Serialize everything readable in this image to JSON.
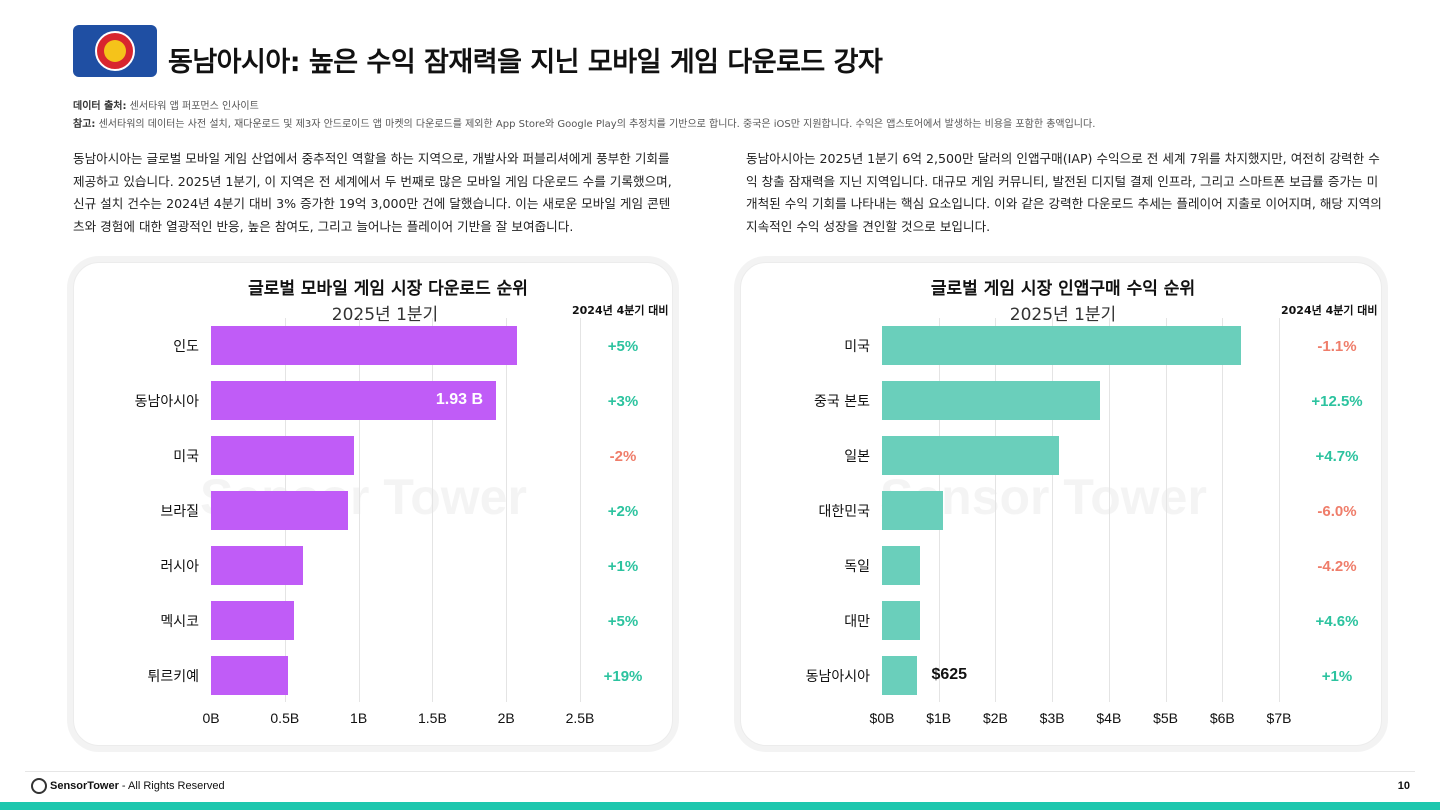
{
  "header": {
    "title": "동남아시아: 높은 수익 잠재력을 지닌 모바일 게임 다운로드 강자",
    "source_label": "데이터 출처:",
    "source_text": "센서타워 앱 퍼포먼스 인사이트",
    "note_label": "참고:",
    "note_text": "센서타워의 데이터는 사전 설치, 재다운로드 및 제3자 안드로이드 앱 마켓의 다운로드를 제외한 App Store와 Google Play의 추정치를 기반으로 합니다. 중국은 iOS만 지원합니다. 수익은 앱스토어에서 발생하는 비용을 포함한 총액입니다."
  },
  "body": {
    "left": "동남아시아는 글로벌 모바일 게임 산업에서 중추적인 역할을 하는 지역으로, 개발사와 퍼블리셔에게 풍부한 기회를 제공하고 있습니다. 2025년 1분기, 이 지역은 전 세계에서 두 번째로 많은 모바일 게임 다운로드 수를 기록했으며, 신규 설치 건수는 2024년 4분기 대비 3% 증가한 19억 3,000만 건에 달했습니다. 이는 새로운 모바일 게임 콘텐츠와 경험에 대한 열광적인 반응, 높은 참여도, 그리고 늘어나는 플레이어 기반을 잘 보여줍니다.",
    "right": "동남아시아는 2025년 1분기 6억 2,500만 달러의 인앱구매(IAP) 수익으로 전 세계 7위를 차지했지만, 여전히 강력한 수익 창출 잠재력을 지닌 지역입니다. 대규모 게임 커뮤니티, 발전된 디지털 결제 인프라, 그리고 스마트폰 보급률 증가는 미개척된 수익 기회를 나타내는 핵심 요소입니다. 이와 같은 강력한 다운로드 추세는 플레이어 지출로 이어지며, 해당 지역의 지속적인 수익 성장을 견인할 것으로 보입니다."
  },
  "chart_data": [
    {
      "type": "bar",
      "orientation": "horizontal",
      "title": "글로벌 모바일 게임 시장 다운로드 순위",
      "subtitle": "2025년 1분기",
      "change_header": "2024년 4분기 대비",
      "categories": [
        "인도",
        "동남아시아",
        "미국",
        "브라질",
        "러시아",
        "멕시코",
        "튀르키예"
      ],
      "values": [
        2.07,
        1.93,
        0.97,
        0.93,
        0.62,
        0.56,
        0.52
      ],
      "unit": "B",
      "changes": [
        "+5%",
        "+3%",
        "-2%",
        "+2%",
        "+1%",
        "+5%",
        "+19%"
      ],
      "data_labels": [
        {
          "index": 1,
          "text": "1.93 B"
        }
      ],
      "xlim": [
        0,
        2.5
      ],
      "ticks": [
        "0B",
        "0.5B",
        "1B",
        "1.5B",
        "2B",
        "2.5B"
      ],
      "tick_values": [
        0,
        0.5,
        1,
        1.5,
        2,
        2.5
      ],
      "grid": true,
      "bar_color": "#c05cf7"
    },
    {
      "type": "bar",
      "orientation": "horizontal",
      "title": "글로벌 게임 시장 인앱구매 수익 순위",
      "subtitle": "2025년 1분기",
      "change_header": "2024년 4분기 대비",
      "categories": [
        "미국",
        "중국 본토",
        "일본",
        "대한민국",
        "독일",
        "대만",
        "동남아시아"
      ],
      "values": [
        6.33,
        3.85,
        3.12,
        1.08,
        0.67,
        0.67,
        0.625
      ],
      "unit": "$B",
      "changes": [
        "-1.1%",
        "+12.5%",
        "+4.7%",
        "-6.0%",
        "-4.2%",
        "+4.6%",
        "+1%"
      ],
      "data_labels": [
        {
          "index": 6,
          "text": "$625"
        }
      ],
      "xlim": [
        0,
        7
      ],
      "ticks": [
        "$0B",
        "$1B",
        "$2B",
        "$3B",
        "$4B",
        "$5B",
        "$6B",
        "$7B"
      ],
      "tick_values": [
        0,
        1,
        2,
        3,
        4,
        5,
        6,
        7
      ],
      "grid": true,
      "bar_color": "#6acfbb"
    }
  ],
  "colors": {
    "positive": "#2cc39f",
    "negative": "#ef7d6a",
    "accent_strip": "#1dc7ae"
  },
  "watermark": "Sensor Tower",
  "footer": {
    "brand": "SensorTower",
    "rights": " - All Rights Reserved",
    "page": "10"
  }
}
